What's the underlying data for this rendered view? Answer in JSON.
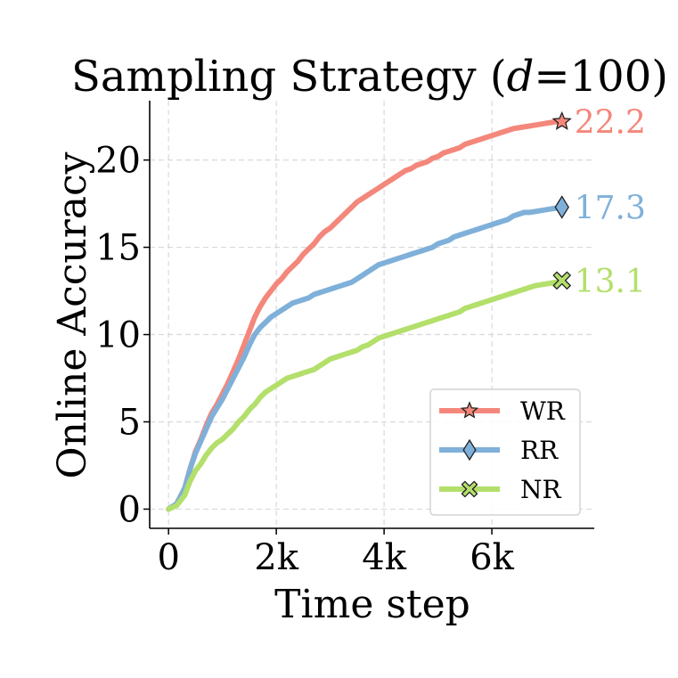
{
  "chart_data": {
    "type": "line",
    "title_parts": {
      "prefix": "Sampling Strategy (",
      "italic": "d",
      "suffix": "=100)"
    },
    "xlabel": "Time step",
    "ylabel": "Online Accuracy",
    "xlim": [
      -350,
      7900
    ],
    "ylim": [
      -1.1,
      23.4
    ],
    "xticks": [
      {
        "value": 0,
        "label": "0"
      },
      {
        "value": 2000,
        "label": "2k"
      },
      {
        "value": 4000,
        "label": "4k"
      },
      {
        "value": 6000,
        "label": "6k"
      }
    ],
    "yticks": [
      {
        "value": 0,
        "label": "0"
      },
      {
        "value": 5,
        "label": "5"
      },
      {
        "value": 10,
        "label": "10"
      },
      {
        "value": 15,
        "label": "15"
      },
      {
        "value": 20,
        "label": "20"
      }
    ],
    "grid": true,
    "legend_position": "lower-right",
    "series": [
      {
        "name": "WR",
        "color": "#f4877b",
        "marker": "star",
        "final_label": "22.2",
        "x": [
          0,
          150,
          300,
          400,
          500,
          600,
          700,
          800,
          900,
          1000,
          1100,
          1200,
          1300,
          1400,
          1500,
          1600,
          1700,
          1800,
          1900,
          2000,
          2100,
          2200,
          2300,
          2400,
          2500,
          2600,
          2700,
          2800,
          2900,
          3000,
          3100,
          3200,
          3300,
          3400,
          3500,
          3600,
          3700,
          3800,
          3900,
          4000,
          4100,
          4200,
          4300,
          4400,
          4500,
          4600,
          4700,
          4800,
          4900,
          5000,
          5100,
          5200,
          5300,
          5400,
          5500,
          5600,
          5700,
          5800,
          5900,
          6000,
          6100,
          6200,
          6300,
          6400,
          6500,
          6600,
          6700,
          6800,
          6900,
          7000,
          7100,
          7200,
          7300
        ],
        "y": [
          0,
          0.3,
          1.2,
          2.3,
          3.3,
          4.0,
          4.8,
          5.5,
          6.0,
          6.6,
          7.2,
          7.9,
          8.6,
          9.4,
          10.2,
          11.0,
          11.6,
          12.1,
          12.5,
          12.9,
          13.2,
          13.6,
          13.9,
          14.2,
          14.6,
          14.9,
          15.2,
          15.6,
          15.9,
          16.1,
          16.4,
          16.7,
          17.0,
          17.3,
          17.6,
          17.8,
          18.0,
          18.2,
          18.4,
          18.6,
          18.8,
          19.0,
          19.2,
          19.4,
          19.5,
          19.7,
          19.8,
          19.9,
          20.1,
          20.2,
          20.4,
          20.5,
          20.6,
          20.7,
          20.9,
          21.0,
          21.1,
          21.2,
          21.3,
          21.4,
          21.5,
          21.6,
          21.7,
          21.8,
          21.85,
          21.9,
          21.95,
          22.0,
          22.05,
          22.1,
          22.15,
          22.2,
          22.2
        ]
      },
      {
        "name": "RR",
        "color": "#7fb0d9",
        "marker": "diamond",
        "final_label": "17.3",
        "x": [
          0,
          150,
          300,
          400,
          500,
          600,
          700,
          800,
          900,
          1000,
          1100,
          1200,
          1300,
          1400,
          1500,
          1600,
          1700,
          1800,
          1900,
          2000,
          2100,
          2200,
          2300,
          2400,
          2500,
          2600,
          2700,
          2800,
          2900,
          3000,
          3100,
          3200,
          3300,
          3400,
          3500,
          3600,
          3700,
          3800,
          3900,
          4000,
          4100,
          4200,
          4300,
          4400,
          4500,
          4600,
          4700,
          4800,
          4900,
          5000,
          5100,
          5200,
          5300,
          5400,
          5500,
          5600,
          5700,
          5800,
          5900,
          6000,
          6100,
          6200,
          6300,
          6400,
          6500,
          6600,
          6700,
          6800,
          6900,
          7000,
          7100,
          7200,
          7300
        ],
        "y": [
          0,
          0.3,
          1.2,
          2.3,
          3.2,
          3.9,
          4.6,
          5.3,
          5.8,
          6.3,
          6.9,
          7.5,
          8.1,
          8.7,
          9.4,
          10.0,
          10.4,
          10.7,
          11.0,
          11.2,
          11.4,
          11.6,
          11.8,
          11.9,
          12.0,
          12.1,
          12.3,
          12.4,
          12.5,
          12.6,
          12.7,
          12.8,
          12.9,
          13.0,
          13.2,
          13.4,
          13.6,
          13.8,
          14.0,
          14.1,
          14.2,
          14.3,
          14.4,
          14.5,
          14.6,
          14.7,
          14.8,
          14.9,
          15.0,
          15.2,
          15.3,
          15.4,
          15.6,
          15.7,
          15.8,
          15.9,
          16.0,
          16.1,
          16.2,
          16.3,
          16.4,
          16.5,
          16.6,
          16.8,
          16.9,
          17.0,
          17.0,
          17.05,
          17.1,
          17.15,
          17.2,
          17.25,
          17.3
        ]
      },
      {
        "name": "NR",
        "color": "#b3df6b",
        "marker": "x",
        "final_label": "13.1",
        "x": [
          0,
          150,
          300,
          400,
          500,
          600,
          700,
          800,
          900,
          1000,
          1100,
          1200,
          1300,
          1400,
          1500,
          1600,
          1700,
          1800,
          1900,
          2000,
          2100,
          2200,
          2300,
          2400,
          2500,
          2600,
          2700,
          2800,
          2900,
          3000,
          3100,
          3200,
          3300,
          3400,
          3500,
          3600,
          3700,
          3800,
          3900,
          4000,
          4100,
          4200,
          4300,
          4400,
          4500,
          4600,
          4700,
          4800,
          4900,
          5000,
          5100,
          5200,
          5300,
          5400,
          5500,
          5600,
          5700,
          5800,
          5900,
          6000,
          6100,
          6200,
          6300,
          6400,
          6500,
          6600,
          6700,
          6800,
          6900,
          7000,
          7100,
          7200,
          7300
        ],
        "y": [
          0,
          0.2,
          0.8,
          1.6,
          2.2,
          2.6,
          3.1,
          3.5,
          3.8,
          4.0,
          4.3,
          4.6,
          5.0,
          5.3,
          5.7,
          6.0,
          6.4,
          6.7,
          6.9,
          7.1,
          7.3,
          7.5,
          7.6,
          7.7,
          7.8,
          7.9,
          8.0,
          8.2,
          8.4,
          8.6,
          8.7,
          8.8,
          8.9,
          9.0,
          9.1,
          9.3,
          9.4,
          9.6,
          9.8,
          9.9,
          10.0,
          10.1,
          10.2,
          10.3,
          10.4,
          10.5,
          10.6,
          10.7,
          10.8,
          10.9,
          11.0,
          11.1,
          11.2,
          11.3,
          11.5,
          11.6,
          11.7,
          11.8,
          11.9,
          12.0,
          12.1,
          12.2,
          12.3,
          12.4,
          12.5,
          12.6,
          12.7,
          12.8,
          12.85,
          12.9,
          12.95,
          13.0,
          13.1
        ]
      }
    ]
  }
}
